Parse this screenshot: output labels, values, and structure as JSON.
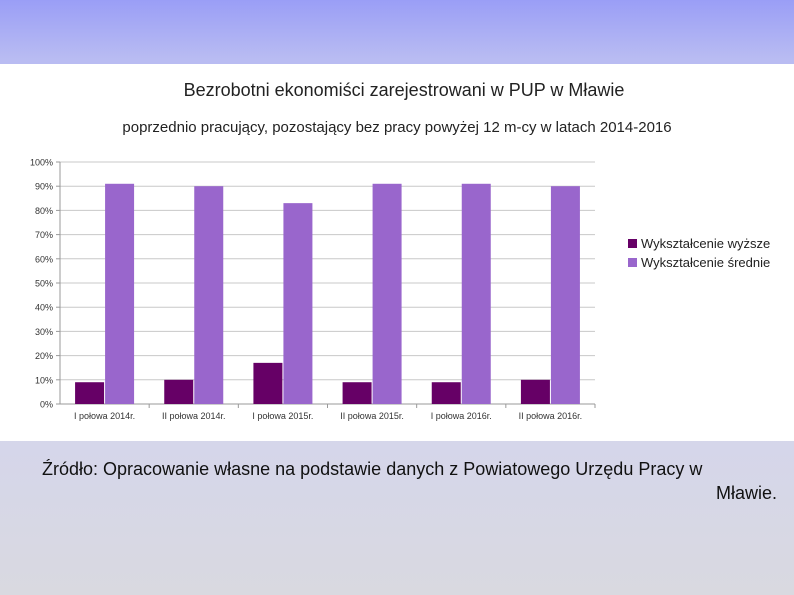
{
  "chart_data": {
    "type": "bar",
    "title": "Bezrobotni ekonomiści zarejestrowani w PUP w Mławie",
    "subtitle": "poprzednio pracujący, pozostający bez pracy powyżej 12 m-cy w latach 2014-2016",
    "categories": [
      "I połowa 2014r.",
      "II połowa 2014r.",
      "I połowa 2015r.",
      "II połowa 2015r.",
      "I połowa 2016r.",
      "II połowa 2016r."
    ],
    "series": [
      {
        "name": "Wykształcenie wyższe",
        "values": [
          9,
          10,
          17,
          9,
          9,
          10
        ],
        "color": "#660066"
      },
      {
        "name": "Wykształcenie średnie",
        "values": [
          91,
          90,
          83,
          91,
          91,
          90
        ],
        "color": "#9966cc"
      }
    ],
    "y_ticks": [
      "0%",
      "10%",
      "20%",
      "30%",
      "40%",
      "50%",
      "60%",
      "70%",
      "80%",
      "90%",
      "100%"
    ],
    "ylim": [
      0,
      100
    ],
    "grid": true,
    "legend_position": "right"
  },
  "source": {
    "line1": "Źródło: Opracowanie własne na podstawie danych z Powiatowego Urzędu Pracy w",
    "line2": "Mławie."
  }
}
